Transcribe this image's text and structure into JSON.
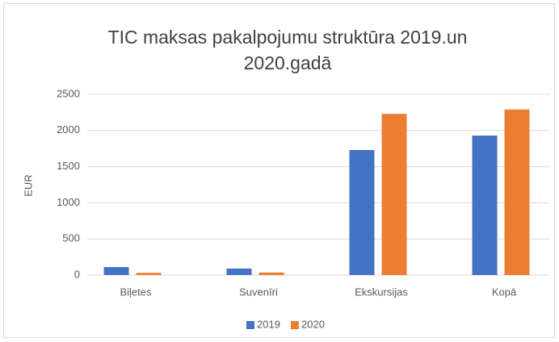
{
  "chart_data": {
    "type": "bar",
    "title": "TIC maksas pakalpojumu struktūra 2019.un 2020.gadā",
    "y_label": "EUR",
    "categories": [
      "Biļetes",
      "Suvenīri",
      "Ekskursijas",
      "Kopā"
    ],
    "series": [
      {
        "name": "2019",
        "color": "#4472c4",
        "values": [
          110,
          90,
          1730,
          1930
        ]
      },
      {
        "name": "2020",
        "color": "#ed7d31",
        "values": [
          30,
          35,
          2230,
          2290
        ]
      }
    ],
    "ylim": [
      0,
      2500
    ],
    "yticks": [
      0,
      500,
      1000,
      1500,
      2000,
      2500
    ],
    "grid": true,
    "legend": "bottom"
  }
}
